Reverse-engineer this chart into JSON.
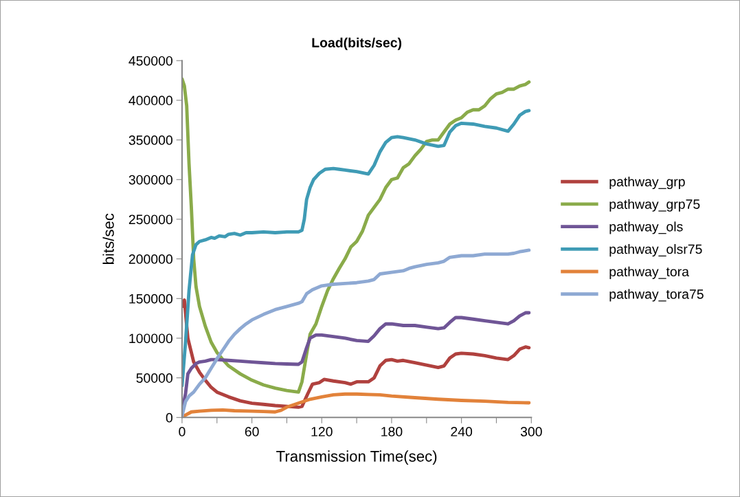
{
  "chart_data": {
    "type": "line",
    "title": "Load(bits/sec)",
    "xlabel": "Transmission Time(sec)",
    "ylabel": "bits/sec",
    "xlim": [
      0,
      300
    ],
    "xticks": [
      0,
      {
        "value": 30,
        "label": null
      },
      60,
      {
        "value": 90,
        "label": null
      },
      120,
      {
        "value": 150,
        "label": null
      },
      180,
      {
        "value": 210,
        "label": null
      },
      240,
      {
        "value": 270,
        "label": null
      },
      300
    ],
    "ylim": [
      0,
      450000
    ],
    "yticks": [
      0,
      50000,
      100000,
      150000,
      200000,
      250000,
      300000,
      350000,
      400000,
      450000
    ],
    "grid": false,
    "legend": "right",
    "marker": "none",
    "line_style": "solid",
    "series": [
      {
        "name": "pathway_grp",
        "color": "#b0413e",
        "x": [
          0,
          2,
          5,
          10,
          15,
          20,
          25,
          30,
          40,
          50,
          60,
          70,
          80,
          90,
          100,
          103,
          108,
          112,
          118,
          122,
          130,
          140,
          145,
          150,
          160,
          165,
          170,
          175,
          180,
          185,
          190,
          200,
          210,
          220,
          225,
          230,
          235,
          240,
          250,
          260,
          270,
          280,
          285,
          290,
          295,
          298
        ],
        "values": [
          140000,
          148000,
          100000,
          70000,
          57000,
          47000,
          38000,
          32000,
          26000,
          21000,
          18000,
          16500,
          15000,
          14000,
          13000,
          14000,
          30000,
          42000,
          44000,
          48000,
          46000,
          44000,
          42000,
          45000,
          45000,
          50000,
          65000,
          72000,
          73000,
          71000,
          72000,
          69000,
          66000,
          63000,
          65000,
          75000,
          80000,
          81000,
          80000,
          78000,
          75000,
          73000,
          78000,
          86000,
          89000,
          88000
        ]
      },
      {
        "name": "pathway_grp75",
        "color": "#8aab4a",
        "x": [
          0,
          2,
          4,
          6,
          8,
          10,
          12,
          15,
          20,
          25,
          30,
          35,
          40,
          50,
          60,
          65,
          70,
          80,
          90,
          100,
          103,
          107,
          110,
          115,
          120,
          125,
          130,
          135,
          140,
          145,
          150,
          155,
          160,
          165,
          170,
          175,
          180,
          185,
          190,
          195,
          200,
          205,
          210,
          215,
          220,
          225,
          230,
          235,
          240,
          245,
          250,
          255,
          260,
          265,
          270,
          275,
          280,
          285,
          290,
          295,
          298
        ],
        "values": [
          427000,
          418000,
          393000,
          320000,
          265000,
          200000,
          165000,
          140000,
          115000,
          95000,
          82000,
          73000,
          65000,
          55000,
          47000,
          44000,
          41000,
          37000,
          34000,
          32000,
          45000,
          80000,
          105000,
          118000,
          140000,
          160000,
          175000,
          188000,
          200000,
          215000,
          222000,
          235000,
          255000,
          265000,
          275000,
          290000,
          300000,
          302000,
          315000,
          320000,
          330000,
          338000,
          348000,
          350000,
          350000,
          360000,
          370000,
          375000,
          378000,
          385000,
          388000,
          388000,
          393000,
          402000,
          408000,
          410000,
          414000,
          414000,
          418000,
          420000,
          423000
        ]
      },
      {
        "name": "pathway_ols",
        "color": "#6f5596",
        "x": [
          0,
          3,
          5,
          8,
          12,
          15,
          20,
          25,
          30,
          40,
          50,
          60,
          70,
          80,
          90,
          100,
          103,
          107,
          110,
          115,
          120,
          130,
          140,
          150,
          160,
          165,
          170,
          175,
          180,
          190,
          200,
          210,
          220,
          225,
          230,
          235,
          240,
          250,
          260,
          270,
          280,
          285,
          290,
          295,
          298
        ],
        "values": [
          8000,
          30000,
          55000,
          62000,
          68000,
          70000,
          71000,
          73000,
          73000,
          72000,
          71000,
          70000,
          69000,
          68000,
          67500,
          67000,
          70000,
          88000,
          100000,
          104000,
          104000,
          102000,
          100000,
          97000,
          96000,
          103000,
          112000,
          118000,
          118000,
          116000,
          116000,
          114000,
          112000,
          113000,
          120000,
          126000,
          126000,
          124000,
          122000,
          120000,
          118000,
          122000,
          128000,
          132000,
          132000
        ]
      },
      {
        "name": "pathway_olsr75",
        "color": "#3f9bb5",
        "x": [
          0,
          3,
          6,
          9,
          12,
          15,
          20,
          25,
          28,
          32,
          37,
          40,
          45,
          50,
          55,
          60,
          70,
          80,
          90,
          100,
          103,
          105,
          107,
          110,
          113,
          118,
          123,
          130,
          135,
          140,
          150,
          160,
          165,
          170,
          175,
          180,
          185,
          190,
          200,
          210,
          220,
          225,
          230,
          235,
          240,
          250,
          260,
          270,
          280,
          285,
          290,
          295,
          298
        ],
        "values": [
          40000,
          95000,
          160000,
          205000,
          218000,
          222000,
          224000,
          227000,
          226000,
          229000,
          228000,
          231000,
          232000,
          230000,
          233000,
          233000,
          234000,
          233000,
          234000,
          234000,
          236000,
          250000,
          275000,
          290000,
          300000,
          308000,
          313000,
          314000,
          313000,
          312000,
          310000,
          307000,
          318000,
          335000,
          347000,
          353000,
          354000,
          353000,
          350000,
          345000,
          342000,
          343000,
          360000,
          368000,
          371000,
          370000,
          367000,
          365000,
          361000,
          370000,
          381000,
          386000,
          387000
        ]
      },
      {
        "name": "pathway_tora",
        "color": "#e2823a",
        "x": [
          0,
          3,
          8,
          15,
          25,
          35,
          45,
          60,
          70,
          80,
          85,
          90,
          100,
          110,
          120,
          130,
          140,
          150,
          160,
          170,
          180,
          200,
          220,
          240,
          260,
          280,
          298
        ],
        "values": [
          0,
          3000,
          7000,
          8000,
          9000,
          9500,
          8500,
          8000,
          7500,
          7000,
          9000,
          13000,
          18000,
          23000,
          26000,
          28500,
          29500,
          29500,
          29000,
          28500,
          27000,
          25000,
          23000,
          21500,
          20500,
          19000,
          18500
        ]
      },
      {
        "name": "pathway_tora75",
        "color": "#8ea9d3",
        "x": [
          0,
          3,
          6,
          10,
          15,
          20,
          25,
          30,
          35,
          40,
          45,
          50,
          55,
          60,
          70,
          80,
          90,
          100,
          103,
          107,
          112,
          120,
          130,
          140,
          150,
          160,
          165,
          170,
          180,
          190,
          195,
          200,
          210,
          220,
          225,
          230,
          240,
          250,
          260,
          270,
          280,
          285,
          290,
          298
        ],
        "values": [
          2000,
          20000,
          27000,
          32000,
          42000,
          50000,
          62000,
          74000,
          85000,
          96000,
          105000,
          112000,
          118000,
          123000,
          130000,
          136000,
          140000,
          144000,
          146000,
          156000,
          161000,
          166000,
          168000,
          169000,
          170000,
          172000,
          174000,
          181000,
          183000,
          185000,
          188000,
          190000,
          193000,
          195000,
          197000,
          202000,
          204000,
          204000,
          206000,
          206000,
          206000,
          207000,
          209000,
          211000
        ]
      }
    ]
  }
}
